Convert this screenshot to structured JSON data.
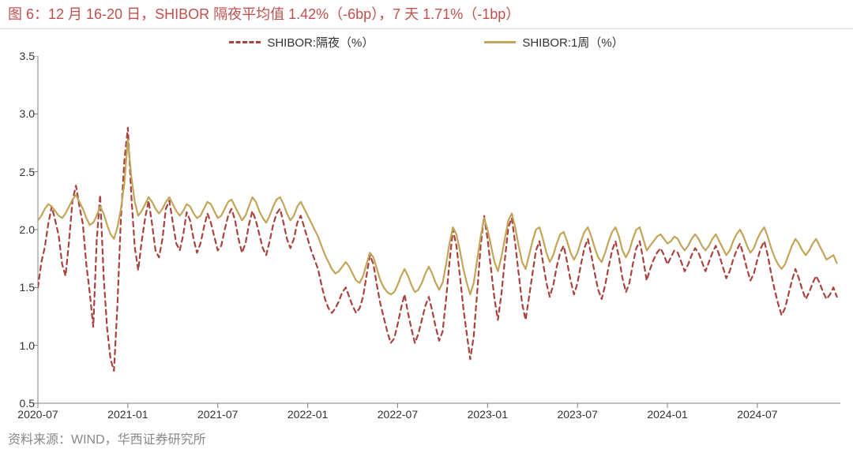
{
  "title": "图 6：12 月 16-20 日，SHIBOR 隔夜平均值 1.42%（-6bp），7 天 1.71%（-1bp）",
  "title_color": "#c0504d",
  "source": "资料来源：WIND，华西证券研究所",
  "source_color": "#888888",
  "legend": {
    "series_a": "SHIBOR:隔夜（%）",
    "series_b": "SHIBOR:1周（%）"
  },
  "chart": {
    "type": "line",
    "background_color": "#ffffff",
    "frame_color": "#808080",
    "frame_width": 1,
    "ylim": [
      0.5,
      3.5
    ],
    "ytick_labels": [
      "0.5",
      "1.0",
      "1.5",
      "2.0",
      "2.5",
      "3.0",
      "3.5"
    ],
    "ytick_values": [
      0.5,
      1.0,
      1.5,
      2.0,
      2.5,
      3.0,
      3.5
    ],
    "xtick_labels": [
      "2020-07",
      "2021-01",
      "2021-07",
      "2022-01",
      "2022-07",
      "2023-01",
      "2023-07",
      "2024-01",
      "2024-07"
    ],
    "xlim": [
      0,
      232
    ],
    "xtick_positions": [
      0,
      26,
      52,
      78,
      104,
      130,
      156,
      182,
      208
    ],
    "tick_fontsize": 14,
    "tick_color": "#333333",
    "tick_len": 6,
    "series": [
      {
        "name": "SHIBOR:隔夜（%）",
        "color": "#a8423f",
        "dash": "6,5",
        "width": 2.2,
        "y": [
          1.5,
          1.72,
          1.85,
          2.05,
          2.2,
          2.08,
          1.95,
          1.7,
          1.6,
          1.9,
          2.25,
          2.38,
          2.2,
          2.05,
          1.7,
          1.45,
          1.16,
          1.9,
          2.3,
          1.6,
          1.15,
          0.88,
          0.78,
          1.35,
          2.1,
          2.6,
          2.88,
          2.3,
          1.85,
          1.65,
          1.9,
          2.1,
          2.25,
          2.05,
          1.82,
          1.76,
          1.92,
          2.18,
          2.25,
          2.06,
          1.88,
          1.82,
          1.95,
          2.15,
          2.08,
          1.92,
          1.8,
          1.88,
          2.02,
          2.14,
          2.06,
          1.94,
          1.82,
          1.86,
          2.0,
          2.12,
          2.18,
          2.08,
          1.92,
          1.8,
          1.88,
          2.04,
          2.16,
          2.08,
          1.96,
          1.84,
          1.78,
          1.9,
          2.04,
          2.14,
          2.18,
          2.06,
          1.92,
          1.84,
          1.92,
          2.06,
          2.12,
          2.02,
          1.92,
          1.82,
          1.74,
          1.66,
          1.52,
          1.4,
          1.32,
          1.28,
          1.32,
          1.38,
          1.46,
          1.5,
          1.42,
          1.34,
          1.28,
          1.32,
          1.42,
          1.6,
          1.78,
          1.7,
          1.52,
          1.36,
          1.24,
          1.12,
          1.02,
          1.06,
          1.18,
          1.32,
          1.44,
          1.28,
          1.14,
          1.02,
          1.1,
          1.22,
          1.34,
          1.42,
          1.3,
          1.16,
          1.04,
          1.12,
          1.4,
          1.72,
          2.0,
          1.86,
          1.6,
          1.32,
          1.1,
          0.88,
          1.08,
          1.46,
          1.86,
          2.12,
          1.92,
          1.66,
          1.4,
          1.22,
          1.44,
          1.74,
          2.02,
          2.1,
          1.88,
          1.62,
          1.36,
          1.22,
          1.42,
          1.62,
          1.82,
          1.9,
          1.72,
          1.54,
          1.42,
          1.52,
          1.68,
          1.8,
          1.86,
          1.72,
          1.56,
          1.44,
          1.54,
          1.7,
          1.84,
          1.92,
          1.78,
          1.62,
          1.48,
          1.4,
          1.52,
          1.68,
          1.82,
          1.9,
          1.76,
          1.58,
          1.46,
          1.54,
          1.7,
          1.84,
          1.9,
          1.74,
          1.56,
          1.66,
          1.74,
          1.8,
          1.84,
          1.78,
          1.7,
          1.76,
          1.82,
          1.8,
          1.72,
          1.64,
          1.7,
          1.78,
          1.84,
          1.8,
          1.72,
          1.64,
          1.72,
          1.8,
          1.86,
          1.78,
          1.68,
          1.58,
          1.64,
          1.74,
          1.82,
          1.88,
          1.78,
          1.66,
          1.56,
          1.62,
          1.74,
          1.84,
          1.9,
          1.78,
          1.62,
          1.48,
          1.36,
          1.26,
          1.32,
          1.44,
          1.56,
          1.66,
          1.58,
          1.48,
          1.4,
          1.46,
          1.54,
          1.6,
          1.54,
          1.46,
          1.4,
          1.44,
          1.5,
          1.42
        ]
      },
      {
        "name": "SHIBOR:1周（%）",
        "color": "#c3a55a",
        "dash": "",
        "width": 2.2,
        "y": [
          2.08,
          2.12,
          2.18,
          2.22,
          2.2,
          2.16,
          2.12,
          2.1,
          2.14,
          2.2,
          2.26,
          2.3,
          2.24,
          2.18,
          2.1,
          2.04,
          2.06,
          2.12,
          2.2,
          2.14,
          2.04,
          1.96,
          1.92,
          2.02,
          2.18,
          2.4,
          2.78,
          2.46,
          2.24,
          2.12,
          2.16,
          2.22,
          2.28,
          2.24,
          2.18,
          2.14,
          2.18,
          2.24,
          2.28,
          2.22,
          2.16,
          2.12,
          2.16,
          2.22,
          2.2,
          2.14,
          2.1,
          2.12,
          2.18,
          2.24,
          2.22,
          2.16,
          2.1,
          2.12,
          2.18,
          2.24,
          2.26,
          2.2,
          2.14,
          2.08,
          2.12,
          2.2,
          2.28,
          2.24,
          2.16,
          2.1,
          2.06,
          2.12,
          2.2,
          2.26,
          2.28,
          2.22,
          2.14,
          2.08,
          2.12,
          2.2,
          2.24,
          2.18,
          2.12,
          2.06,
          2.0,
          1.94,
          1.86,
          1.78,
          1.72,
          1.66,
          1.62,
          1.64,
          1.68,
          1.72,
          1.68,
          1.62,
          1.56,
          1.54,
          1.6,
          1.7,
          1.8,
          1.76,
          1.66,
          1.56,
          1.5,
          1.46,
          1.44,
          1.46,
          1.52,
          1.6,
          1.66,
          1.6,
          1.52,
          1.46,
          1.48,
          1.54,
          1.62,
          1.68,
          1.62,
          1.54,
          1.48,
          1.54,
          1.7,
          1.88,
          2.02,
          1.96,
          1.82,
          1.66,
          1.54,
          1.44,
          1.54,
          1.74,
          1.94,
          2.1,
          2.0,
          1.86,
          1.72,
          1.64,
          1.76,
          1.92,
          2.08,
          2.14,
          2.02,
          1.86,
          1.72,
          1.66,
          1.78,
          1.9,
          2.0,
          2.02,
          1.92,
          1.8,
          1.72,
          1.78,
          1.88,
          1.96,
          1.98,
          1.9,
          1.8,
          1.74,
          1.8,
          1.9,
          1.98,
          2.02,
          1.94,
          1.84,
          1.76,
          1.72,
          1.8,
          1.9,
          1.98,
          2.02,
          1.94,
          1.82,
          1.76,
          1.82,
          1.92,
          2.0,
          2.02,
          1.92,
          1.82,
          1.86,
          1.9,
          1.94,
          1.96,
          1.92,
          1.88,
          1.9,
          1.94,
          1.92,
          1.86,
          1.82,
          1.86,
          1.92,
          1.96,
          1.92,
          1.86,
          1.82,
          1.86,
          1.92,
          1.96,
          1.9,
          1.84,
          1.78,
          1.82,
          1.9,
          1.96,
          2.0,
          1.94,
          1.86,
          1.8,
          1.84,
          1.92,
          1.98,
          2.02,
          1.94,
          1.84,
          1.76,
          1.7,
          1.66,
          1.7,
          1.78,
          1.86,
          1.92,
          1.88,
          1.82,
          1.78,
          1.82,
          1.88,
          1.92,
          1.86,
          1.8,
          1.74,
          1.76,
          1.78,
          1.71
        ]
      }
    ]
  }
}
